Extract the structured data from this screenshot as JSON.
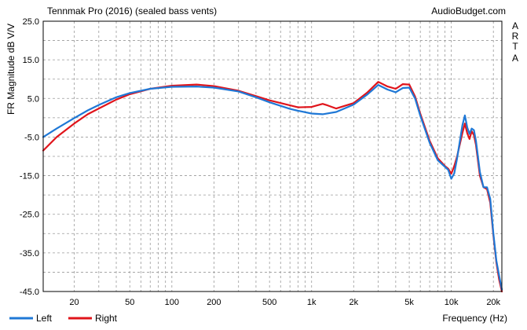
{
  "chart_data": {
    "type": "line",
    "title": "Tennmak Pro (2016) (sealed bass vents)",
    "source": "AudioBudget.com",
    "side_label": [
      "A",
      "R",
      "T",
      "A"
    ],
    "xlabel": "Frequency (Hz)",
    "ylabel": "FR Magnitude dB V/V",
    "xscale": "log",
    "xlim": [
      12,
      23000
    ],
    "ylim": [
      -45,
      25
    ],
    "x_ticks": [
      {
        "value": 20,
        "label": "20"
      },
      {
        "value": 50,
        "label": "50"
      },
      {
        "value": 100,
        "label": "100"
      },
      {
        "value": 200,
        "label": "200"
      },
      {
        "value": 500,
        "label": "500"
      },
      {
        "value": 1000,
        "label": "1k"
      },
      {
        "value": 2000,
        "label": "2k"
      },
      {
        "value": 5000,
        "label": "5k"
      },
      {
        "value": 10000,
        "label": "10k"
      },
      {
        "value": 20000,
        "label": "20k"
      }
    ],
    "y_ticks": [
      {
        "value": 25,
        "label": "25.0"
      },
      {
        "value": 15,
        "label": "15.0"
      },
      {
        "value": 5,
        "label": "5.0"
      },
      {
        "value": -5,
        "label": "-5.0"
      },
      {
        "value": -15,
        "label": "-15.0"
      },
      {
        "value": -25,
        "label": "-25.0"
      },
      {
        "value": -35,
        "label": "-35.0"
      },
      {
        "value": -45,
        "label": "-45.0"
      }
    ],
    "grid": true,
    "legend_position": "bottom-left",
    "series": [
      {
        "name": "Left",
        "color": "#1f78d6",
        "points": [
          [
            12,
            -5.0
          ],
          [
            15,
            -2.8
          ],
          [
            20,
            -0.1
          ],
          [
            25,
            1.9
          ],
          [
            30,
            3.3
          ],
          [
            40,
            5.3
          ],
          [
            50,
            6.4
          ],
          [
            70,
            7.5
          ],
          [
            100,
            8.0
          ],
          [
            150,
            8.1
          ],
          [
            200,
            7.8
          ],
          [
            300,
            6.8
          ],
          [
            400,
            5.3
          ],
          [
            500,
            4.0
          ],
          [
            700,
            2.3
          ],
          [
            800,
            1.8
          ],
          [
            1000,
            1.1
          ],
          [
            1200,
            0.9
          ],
          [
            1500,
            1.5
          ],
          [
            2000,
            3.4
          ],
          [
            2500,
            6.0
          ],
          [
            3000,
            8.5
          ],
          [
            3500,
            7.3
          ],
          [
            4000,
            6.6
          ],
          [
            4500,
            7.7
          ],
          [
            5000,
            7.8
          ],
          [
            5500,
            5.0
          ],
          [
            6000,
            0.5
          ],
          [
            7000,
            -6.5
          ],
          [
            8000,
            -11.0
          ],
          [
            9000,
            -12.7
          ],
          [
            9500,
            -13.5
          ],
          [
            10000,
            -15.8
          ],
          [
            10500,
            -14.4
          ],
          [
            11000,
            -10.5
          ],
          [
            12000,
            -2.0
          ],
          [
            12500,
            0.6
          ],
          [
            13000,
            -2.5
          ],
          [
            13500,
            -4.2
          ],
          [
            14000,
            -2.8
          ],
          [
            14500,
            -3.2
          ],
          [
            15000,
            -6.0
          ],
          [
            16000,
            -14.0
          ],
          [
            17000,
            -18.0
          ],
          [
            18000,
            -18.0
          ],
          [
            19000,
            -21.0
          ],
          [
            20000,
            -30.0
          ],
          [
            21000,
            -37.0
          ],
          [
            22000,
            -41.0
          ],
          [
            23000,
            -44.5
          ]
        ]
      },
      {
        "name": "Right",
        "color": "#e0141b",
        "points": [
          [
            12,
            -8.5
          ],
          [
            15,
            -5.0
          ],
          [
            20,
            -1.5
          ],
          [
            25,
            0.9
          ],
          [
            30,
            2.4
          ],
          [
            40,
            4.7
          ],
          [
            50,
            6.1
          ],
          [
            70,
            7.5
          ],
          [
            100,
            8.3
          ],
          [
            150,
            8.6
          ],
          [
            200,
            8.2
          ],
          [
            300,
            7.0
          ],
          [
            400,
            5.6
          ],
          [
            500,
            4.5
          ],
          [
            700,
            3.2
          ],
          [
            800,
            2.7
          ],
          [
            1000,
            2.8
          ],
          [
            1200,
            3.6
          ],
          [
            1300,
            3.2
          ],
          [
            1500,
            2.4
          ],
          [
            2000,
            3.8
          ],
          [
            2500,
            6.5
          ],
          [
            3000,
            9.3
          ],
          [
            3500,
            8.1
          ],
          [
            4000,
            7.5
          ],
          [
            4500,
            8.7
          ],
          [
            5000,
            8.6
          ],
          [
            5500,
            5.5
          ],
          [
            6000,
            1.0
          ],
          [
            7000,
            -6.0
          ],
          [
            8000,
            -10.5
          ],
          [
            9000,
            -12.5
          ],
          [
            9500,
            -13.2
          ],
          [
            10000,
            -14.5
          ],
          [
            10500,
            -12.5
          ],
          [
            11000,
            -10.0
          ],
          [
            12000,
            -4.0
          ],
          [
            12500,
            -1.5
          ],
          [
            13000,
            -4.0
          ],
          [
            13500,
            -5.5
          ],
          [
            14000,
            -3.5
          ],
          [
            14500,
            -4.5
          ],
          [
            15000,
            -7.0
          ],
          [
            16000,
            -15.0
          ],
          [
            17000,
            -18.0
          ],
          [
            18000,
            -18.5
          ],
          [
            19000,
            -22.0
          ],
          [
            20000,
            -30.5
          ],
          [
            21000,
            -37.5
          ],
          [
            22000,
            -42.0
          ],
          [
            23000,
            -45.0
          ]
        ]
      }
    ]
  }
}
